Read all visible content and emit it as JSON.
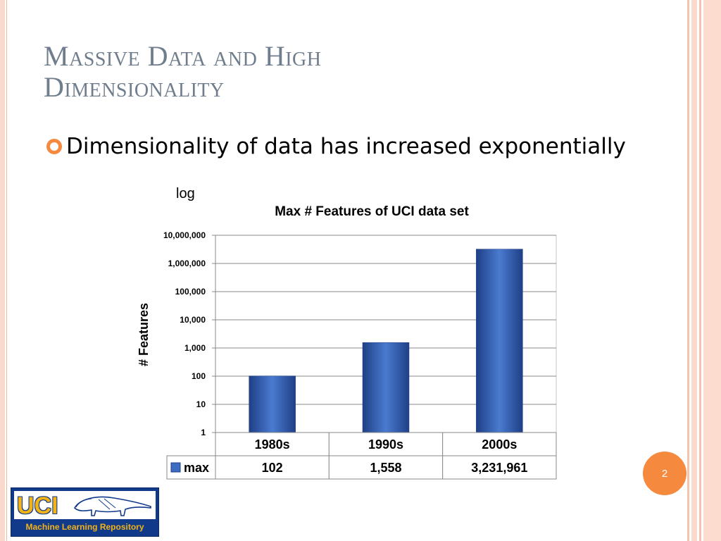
{
  "slide": {
    "title_line1": "Massive Data and High",
    "title_line2": "Dimensionality",
    "bullet": "Dimensionality of data has increased exponentially",
    "log_note": "log",
    "slide_number": "2"
  },
  "logo": {
    "name": "UCI",
    "caption": "Machine Learning Repository",
    "icon": "anteater-icon"
  },
  "colors": {
    "accent": "#f58a3e",
    "title": "#6f7d8c",
    "bar_light": "#4a7bd0",
    "bar_dark": "#1f3f86"
  },
  "chart_data": {
    "type": "bar",
    "title": "Max # Features of UCI data set",
    "xlabel": "",
    "ylabel": "# Features",
    "yscale": "log",
    "ylim": [
      1,
      10000000
    ],
    "ytick_labels": [
      "1",
      "10",
      "100",
      "1,000",
      "10,000",
      "100,000",
      "1,000,000",
      "10,000,000"
    ],
    "grid": true,
    "categories": [
      "1980s",
      "1990s",
      "2000s"
    ],
    "series": [
      {
        "name": "max",
        "values": [
          102,
          1558,
          3231961
        ],
        "value_labels": [
          "102",
          "1,558",
          "3,231,961"
        ]
      }
    ],
    "data_table": true
  }
}
